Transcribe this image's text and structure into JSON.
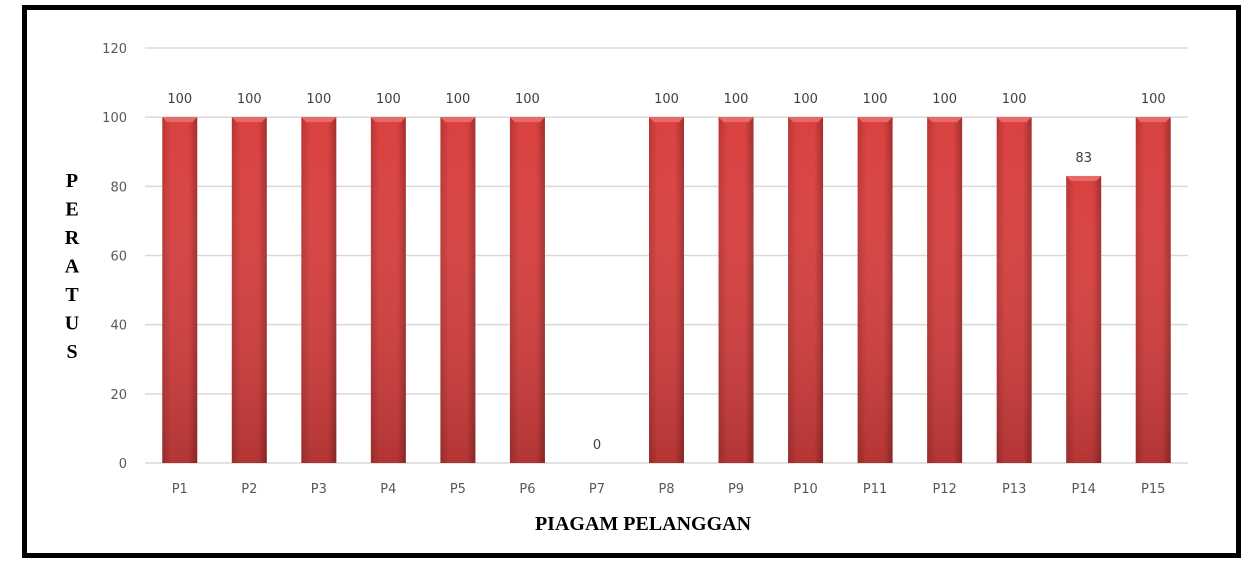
{
  "chart_data": {
    "type": "bar",
    "title": "",
    "xlabel": "PIAGAM PELANGGAN",
    "ylabel": "PERATUS",
    "categories": [
      "P1",
      "P2",
      "P3",
      "P4",
      "P5",
      "P6",
      "P7",
      "P8",
      "P9",
      "P10",
      "P11",
      "P12",
      "P13",
      "P14",
      "P15"
    ],
    "values": [
      100,
      100,
      100,
      100,
      100,
      100,
      0,
      100,
      100,
      100,
      100,
      100,
      100,
      83,
      100
    ],
    "ylim": [
      0,
      120
    ],
    "yticks": [
      0,
      20,
      40,
      60,
      80,
      100,
      120
    ],
    "grid": true,
    "legend": "none",
    "data_labels": true,
    "colors": {
      "bar": "#d94140",
      "bar_dark": "#a83230",
      "grid": "#d9d9d9"
    }
  }
}
